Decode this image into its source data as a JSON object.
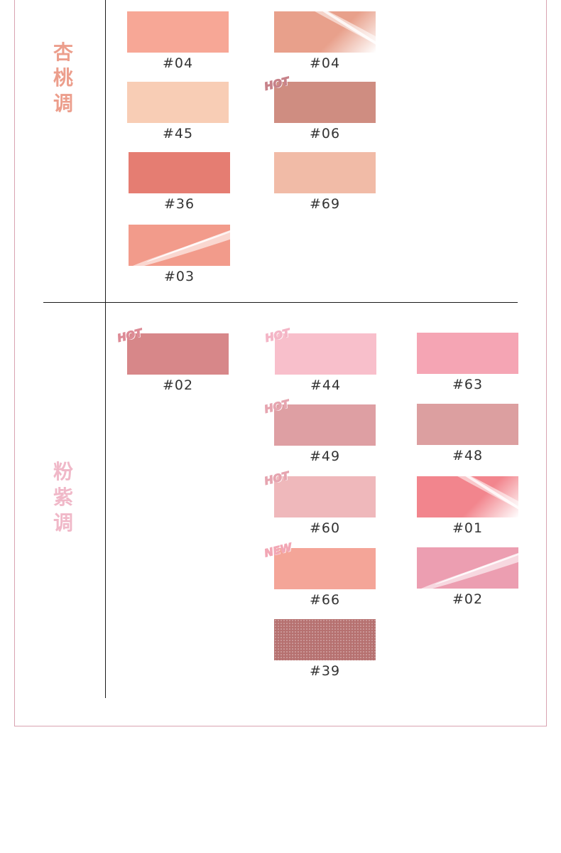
{
  "categories": {
    "apricot": {
      "chars": [
        "杏",
        "桃",
        "调"
      ],
      "color": "#ec9e8c"
    },
    "pink": {
      "chars": [
        "粉",
        "紫",
        "调"
      ],
      "color": "#f0b8c8"
    }
  },
  "tag_colors": {
    "hot_apricot": "#c77b80",
    "hot_pink": "#f2b4c6",
    "new": "#f0a6b4"
  },
  "swatches": [
    {
      "id": "a1",
      "label": "#04",
      "color": "#f7a796",
      "finish": "matte"
    },
    {
      "id": "a2",
      "label": "#04",
      "color": "#e8a08b",
      "finish": "gloss"
    },
    {
      "id": "a3",
      "label": "#45",
      "color": "#f8cdb5",
      "finish": "matte"
    },
    {
      "id": "a4",
      "label": "#06",
      "color": "#cf8d81",
      "finish": "matte",
      "tag": "HOT",
      "tag_color": "#c7828a"
    },
    {
      "id": "a5",
      "label": "#36",
      "color": "#e57d72",
      "finish": "matte"
    },
    {
      "id": "a6",
      "label": "#69",
      "color": "#f1bba7",
      "finish": "matte"
    },
    {
      "id": "a7",
      "label": "#03",
      "color": "#f29b8b",
      "finish": "gloss2"
    },
    {
      "id": "p1",
      "label": "#02",
      "color": "#d78789",
      "finish": "matte",
      "tag": "HOT",
      "tag_color": "#dd8b96"
    },
    {
      "id": "p2",
      "label": "#44",
      "color": "#f8bfcb",
      "finish": "matte",
      "tag": "HOT",
      "tag_color": "#f4b5c6"
    },
    {
      "id": "p3",
      "label": "#63",
      "color": "#f5a5b4",
      "finish": "matte"
    },
    {
      "id": "p4",
      "label": "#49",
      "color": "#de9fa3",
      "finish": "matte",
      "tag": "HOT",
      "tag_color": "#e6a5b0"
    },
    {
      "id": "p5",
      "label": "#48",
      "color": "#dc9fa0",
      "finish": "matte"
    },
    {
      "id": "p6",
      "label": "#60",
      "color": "#efb8bb",
      "finish": "matte",
      "tag": "HOT",
      "tag_color": "#e6a5b0"
    },
    {
      "id": "p7",
      "label": "#01",
      "color": "#f2858d",
      "finish": "gloss"
    },
    {
      "id": "p8",
      "label": "#66",
      "color": "#f4a598",
      "finish": "matte",
      "tag": "NEW",
      "tag_color": "#f2a7b5"
    },
    {
      "id": "p9",
      "label": "#02",
      "color": "#ec9eb1",
      "finish": "gloss2"
    },
    {
      "id": "p10",
      "label": "#39",
      "color": "#b67170",
      "finish": "shimmer"
    }
  ]
}
